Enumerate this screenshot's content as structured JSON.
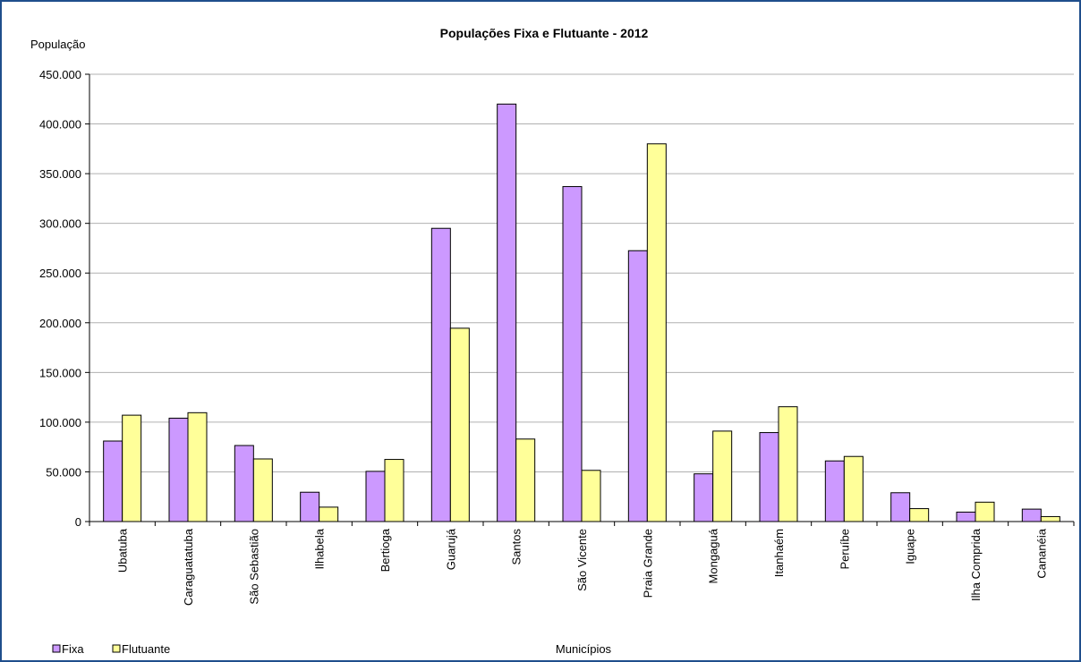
{
  "chart_data": {
    "type": "bar",
    "title": "Populações Fixa e Flutuante - 2012",
    "xlabel": "Municípios",
    "ylabel": "População",
    "ylim": [
      0,
      450000
    ],
    "y_ticks": [
      0,
      50000,
      100000,
      150000,
      200000,
      250000,
      300000,
      350000,
      400000,
      450000
    ],
    "y_tick_labels": [
      "0",
      "50.000",
      "100.000",
      "150.000",
      "200.000",
      "250.000",
      "300.000",
      "350.000",
      "400.000",
      "450.000"
    ],
    "grid": true,
    "legend_position": "bottom-left",
    "categories": [
      "Ubatuba",
      "Caraguatatuba",
      "São Sebastião",
      "Ilhabela",
      "Bertioga",
      "Guarujá",
      "Santos",
      "São Vicente",
      "Praia Grande",
      "Mongaguá",
      "Itanhaém",
      "Peruíbe",
      "Iguape",
      "Ilha Comprida",
      "Cananéia"
    ],
    "series": [
      {
        "name": "Fixa",
        "color": "#cc99ff",
        "values": [
          81000,
          104000,
          76500,
          29500,
          50500,
          295000,
          420000,
          337000,
          272500,
          48000,
          89500,
          61000,
          29000,
          9500,
          12500
        ]
      },
      {
        "name": "Flutuante",
        "color": "#ffff99",
        "values": [
          107000,
          109500,
          63000,
          14500,
          62500,
          194500,
          83000,
          51500,
          380000,
          91000,
          115500,
          65500,
          13000,
          19500,
          5000
        ]
      }
    ]
  }
}
